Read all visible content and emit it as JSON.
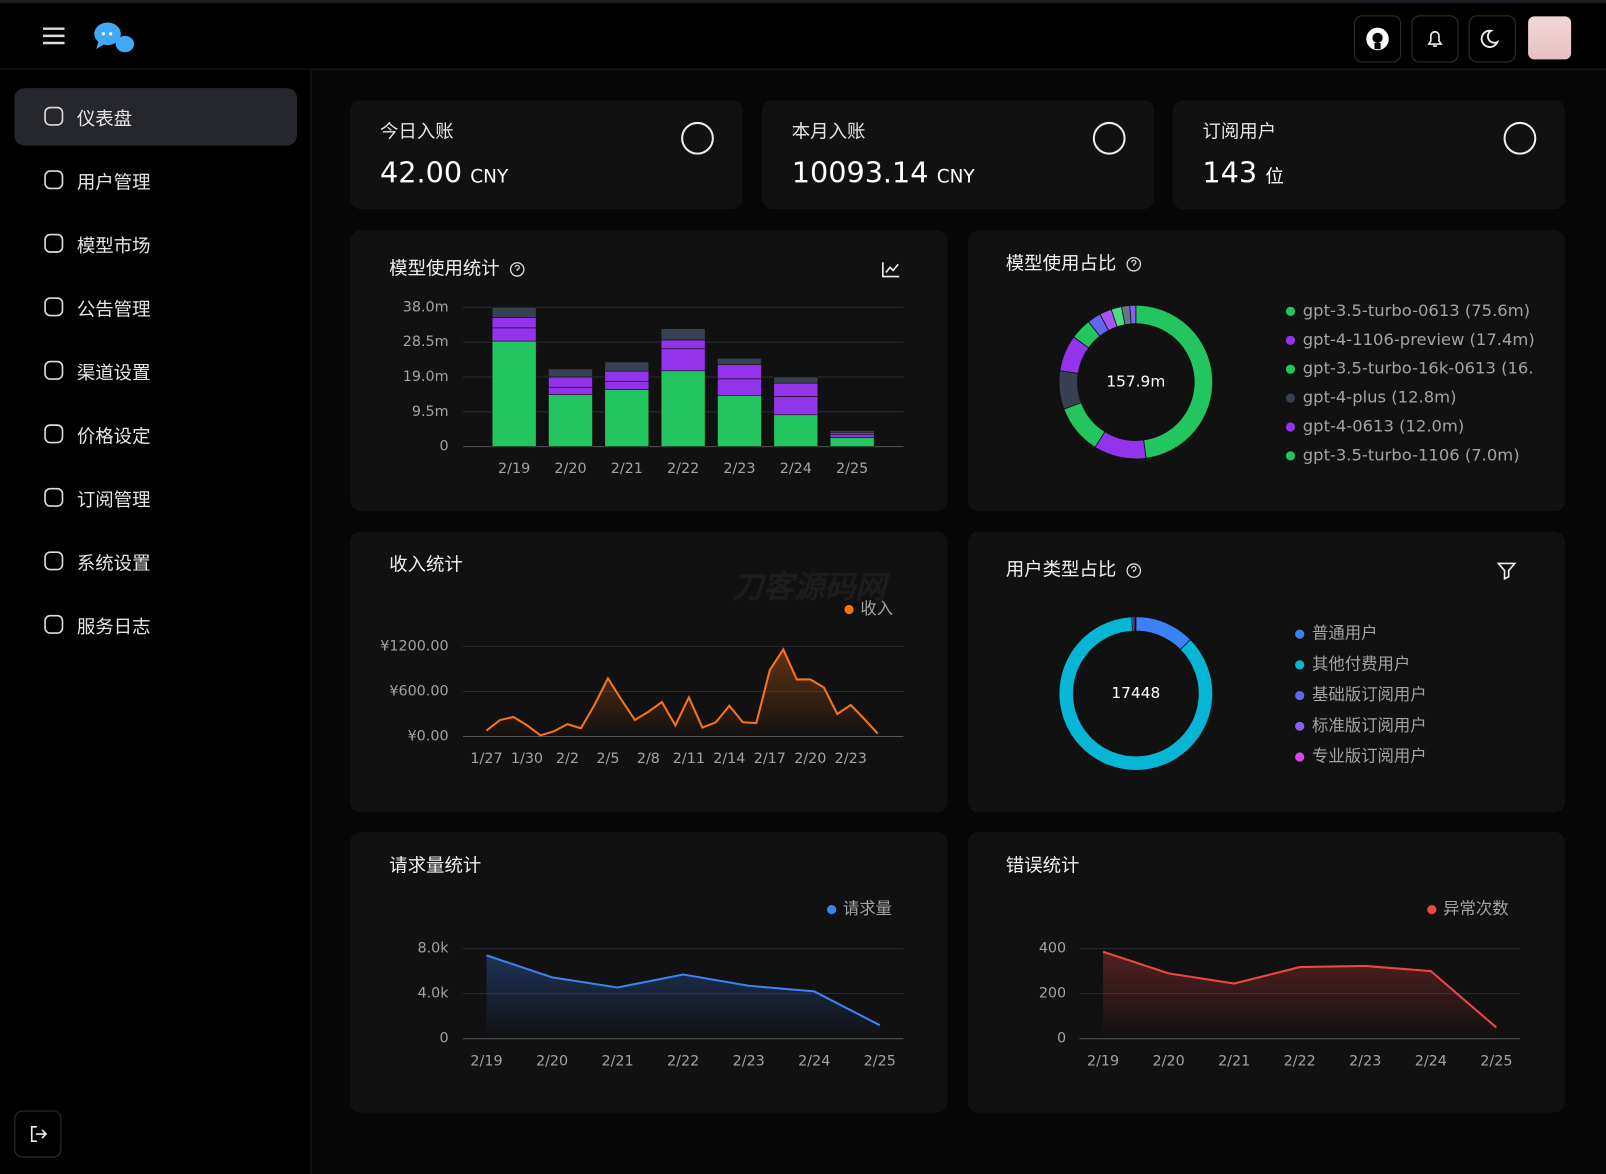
{
  "sidebar": {
    "items": [
      "仪表盘",
      "用户管理",
      "模型市场",
      "公告管理",
      "渠道设置",
      "价格设定",
      "订阅管理",
      "系统设置",
      "服务日志"
    ]
  },
  "stats": [
    {
      "label": "今日入账",
      "value": "42.00",
      "unit": "CNY"
    },
    {
      "label": "本月入账",
      "value": "10093.14",
      "unit": "CNY"
    },
    {
      "label": "订阅用户",
      "value": "143",
      "unit": "位"
    }
  ],
  "watermark": "刀客源码网",
  "chart_data": [
    {
      "type": "stacked-bar",
      "title": "模型使用统计",
      "categories": [
        "2/19",
        "2/20",
        "2/21",
        "2/22",
        "2/23",
        "2/24",
        "2/25"
      ],
      "series": [
        {
          "color": "#22c55e",
          "values": [
            28.8,
            14.2,
            15.6,
            20.7,
            14.0,
            8.7,
            2.5
          ]
        },
        {
          "color": "#9333ea",
          "values": [
            3.6,
            2.0,
            2.2,
            6.0,
            4.5,
            5.0,
            0.8
          ]
        },
        {
          "color": "#9333ea",
          "values": [
            2.8,
            2.8,
            2.8,
            2.4,
            3.9,
            3.6,
            0.6
          ]
        },
        {
          "color": "#374151",
          "values": [
            2.8,
            2.2,
            2.5,
            3.1,
            1.7,
            1.7,
            0.5
          ]
        }
      ],
      "ylim": [
        0,
        38
      ],
      "yticks": [
        0,
        {
          "value": 9.5,
          "label": "9.5m"
        },
        {
          "value": 19,
          "label": "19.0m"
        },
        {
          "value": 28.5,
          "label": "28.5m"
        },
        {
          "value": 38,
          "label": "38.0m"
        }
      ],
      "grid": true
    },
    {
      "type": "donut",
      "title": "模型使用占比",
      "center_label": "157.9m",
      "categories": [
        "gpt-3.5-turbo-0613 (75.6m)",
        "gpt-4-1106-preview (17.4m)",
        "gpt-3.5-turbo-16k-0613 (16.",
        "gpt-4-plus (12.8m)",
        "gpt-4-0613 (12.0m)",
        "gpt-3.5-turbo-1106 (7.0m)",
        null,
        null,
        null,
        null,
        null
      ],
      "values": [
        75.6,
        17.4,
        16.4,
        12.8,
        12.0,
        7.0,
        4.5,
        4.0,
        3.5,
        2.7,
        2.0
      ],
      "colors": [
        "#22c55e",
        "#9333ea",
        "#22c55e",
        "#374151",
        "#9333ea",
        "#22c55e",
        "#6366f1",
        "#a855f7",
        "#4ade80",
        "#64748b",
        "#8b5cf6"
      ]
    },
    {
      "type": "line",
      "title": "收入统计",
      "categories": [
        "1/27",
        null,
        null,
        "1/30",
        null,
        null,
        "2/2",
        null,
        null,
        "2/5",
        null,
        null,
        "2/8",
        null,
        null,
        "2/11",
        null,
        null,
        "2/14",
        null,
        null,
        "2/17",
        null,
        null,
        "2/20",
        null,
        null,
        "2/23",
        null,
        null
      ],
      "series": [
        {
          "name": "收入",
          "color": "#f97316",
          "values": [
            80,
            220,
            260,
            150,
            15,
            70,
            165,
            110,
            420,
            775,
            490,
            220,
            330,
            460,
            150,
            520,
            120,
            190,
            410,
            190,
            180,
            885,
            1160,
            760,
            760,
            655,
            300,
            420,
            235,
            40
          ]
        }
      ],
      "ylim": [
        0,
        1200
      ],
      "yticks": [
        {
          "value": 0,
          "label": "¥0.00"
        },
        {
          "value": 600,
          "label": "¥600.00"
        },
        {
          "value": 1200,
          "label": "¥1200.00"
        }
      ],
      "grid": true
    },
    {
      "type": "donut",
      "title": "用户类型占比",
      "center_label": 17448,
      "categories": [
        "普通用户",
        "其他付费用户",
        "基础版订阅用户",
        "标准版订阅用户",
        "专业版订阅用户"
      ],
      "values": [
        2200,
        15100,
        80,
        48,
        20
      ],
      "colors": [
        "#3b82f6",
        "#06b6d4",
        "#6366f1",
        "#8b5cf6",
        "#d946ef"
      ]
    },
    {
      "type": "line",
      "title": "请求量统计",
      "categories": [
        "2/19",
        "2/20",
        "2/21",
        "2/22",
        "2/23",
        "2/24",
        "2/25"
      ],
      "series": [
        {
          "name": "请求量",
          "color": "#3b82f6",
          "values": [
            7400,
            5450,
            4550,
            5700,
            4700,
            4200,
            1200
          ]
        }
      ],
      "ylim": [
        0,
        8000
      ],
      "yticks": [
        0,
        {
          "value": 4000,
          "label": "4.0k"
        },
        {
          "value": 8000,
          "label": "8.0k"
        }
      ],
      "grid": true
    },
    {
      "type": "line",
      "title": "错误统计",
      "categories": [
        "2/19",
        "2/20",
        "2/21",
        "2/22",
        "2/23",
        "2/24",
        "2/25"
      ],
      "series": [
        {
          "name": "异常次数",
          "color": "#ef4444",
          "values": [
            386,
            290,
            245,
            318,
            323,
            300,
            50
          ]
        }
      ],
      "ylim": [
        0,
        400
      ],
      "yticks": [
        0,
        200,
        400
      ],
      "grid": true
    }
  ]
}
